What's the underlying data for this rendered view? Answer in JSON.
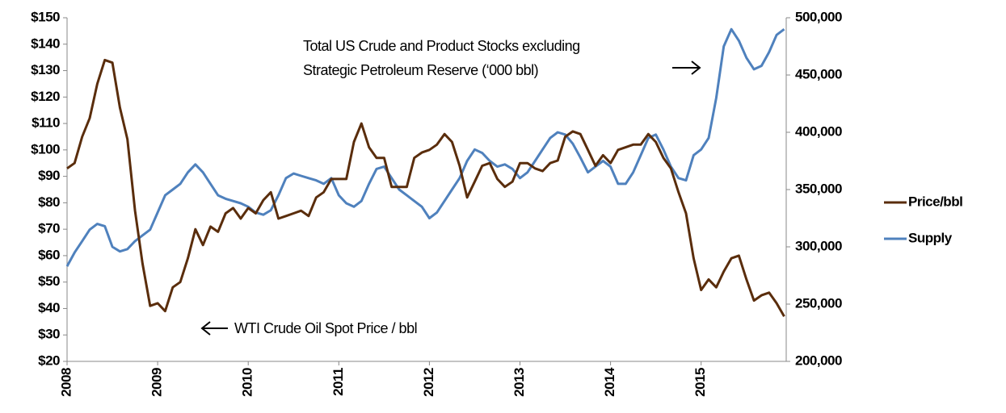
{
  "chart_data": {
    "type": "line",
    "annotations": [
      {
        "text": [
          "Total US Crude and Product Stocks excluding",
          "Strategic Petroleum Reserve (‘000 bbl)"
        ]
      },
      {
        "text": [
          "WTI Crude Oil Spot Price / bbl"
        ]
      }
    ],
    "categories": [
      "2008",
      null,
      null,
      null,
      null,
      null,
      null,
      null,
      null,
      null,
      null,
      null,
      "2009",
      null,
      null,
      null,
      null,
      null,
      null,
      null,
      null,
      null,
      null,
      null,
      "2010",
      null,
      null,
      null,
      null,
      null,
      null,
      null,
      null,
      null,
      null,
      null,
      "2011",
      null,
      null,
      null,
      null,
      null,
      null,
      null,
      null,
      null,
      null,
      null,
      "2012",
      null,
      null,
      null,
      null,
      null,
      null,
      null,
      null,
      null,
      null,
      null,
      "2013",
      null,
      null,
      null,
      null,
      null,
      null,
      null,
      null,
      null,
      null,
      null,
      "2014",
      null,
      null,
      null,
      null,
      null,
      null,
      null,
      null,
      null,
      null,
      null,
      "2015",
      null,
      null,
      null,
      null,
      null,
      null,
      null,
      null,
      null,
      null,
      null
    ],
    "series": [
      {
        "name": "Price/bbl",
        "color": "#5a2d0c",
        "values": [
          93,
          95,
          105,
          112,
          125,
          134,
          133,
          116,
          104,
          77,
          57,
          41,
          42,
          39,
          48,
          50,
          59,
          70,
          64,
          71,
          69,
          76,
          78,
          74,
          78,
          76,
          81,
          84,
          74,
          75,
          76,
          77,
          75,
          82,
          84,
          89,
          89,
          89,
          103,
          110,
          101,
          97,
          97,
          86,
          86,
          86,
          97,
          99,
          100,
          102,
          106,
          103,
          94,
          82,
          88,
          94,
          95,
          89,
          86,
          88,
          95,
          95,
          93,
          92,
          95,
          96,
          105,
          107,
          106,
          100,
          94,
          98,
          95,
          100,
          101,
          102,
          102,
          106,
          103,
          97,
          93,
          84,
          76,
          59,
          47,
          51,
          48,
          54,
          59,
          60,
          51,
          43,
          45,
          46,
          42,
          37
        ]
      },
      {
        "name": "Supply",
        "color": "#4f81bd",
        "axis": "y2",
        "values": [
          283000,
          295000,
          305000,
          315000,
          320000,
          318000,
          300000,
          296000,
          298000,
          305000,
          310000,
          315000,
          330000,
          345000,
          350000,
          355000,
          365000,
          372000,
          365000,
          355000,
          345000,
          342000,
          340000,
          338000,
          335000,
          330000,
          328000,
          332000,
          345000,
          360000,
          364000,
          362000,
          360000,
          358000,
          355000,
          360000,
          345000,
          338000,
          335000,
          340000,
          355000,
          368000,
          370000,
          360000,
          350000,
          345000,
          340000,
          335000,
          325000,
          330000,
          340000,
          350000,
          360000,
          375000,
          385000,
          382000,
          375000,
          370000,
          372000,
          368000,
          360000,
          365000,
          375000,
          385000,
          395000,
          400000,
          398000,
          390000,
          378000,
          365000,
          370000,
          375000,
          370000,
          355000,
          355000,
          365000,
          380000,
          395000,
          398000,
          385000,
          370000,
          360000,
          358000,
          380000,
          385000,
          395000,
          430000,
          475000,
          490000,
          480000,
          465000,
          455000,
          458000,
          470000,
          485000,
          490000
        ]
      }
    ],
    "ylim": [
      20,
      150
    ],
    "yticks": [
      {
        "value": 20,
        "label": "$20"
      },
      {
        "value": 30,
        "label": "$30"
      },
      {
        "value": 40,
        "label": "$40"
      },
      {
        "value": 50,
        "label": "$50"
      },
      {
        "value": 60,
        "label": "$60"
      },
      {
        "value": 70,
        "label": "$70"
      },
      {
        "value": 80,
        "label": "$80"
      },
      {
        "value": 90,
        "label": "$90"
      },
      {
        "value": 100,
        "label": "$100"
      },
      {
        "value": 110,
        "label": "$110"
      },
      {
        "value": 120,
        "label": "$120"
      },
      {
        "value": 130,
        "label": "$130"
      },
      {
        "value": 140,
        "label": "$140"
      },
      {
        "value": 150,
        "label": "$150"
      }
    ],
    "y2lim": [
      200000,
      500000
    ],
    "y2ticks": [
      {
        "value": 200000,
        "label": "200,000"
      },
      {
        "value": 250000,
        "label": "250,000"
      },
      {
        "value": 300000,
        "label": "300,000"
      },
      {
        "value": 350000,
        "label": "350,000"
      },
      {
        "value": 400000,
        "label": "400,000"
      },
      {
        "value": 450000,
        "label": "450,000"
      },
      {
        "value": 500000,
        "label": "500,000"
      }
    ],
    "legend": "right"
  }
}
